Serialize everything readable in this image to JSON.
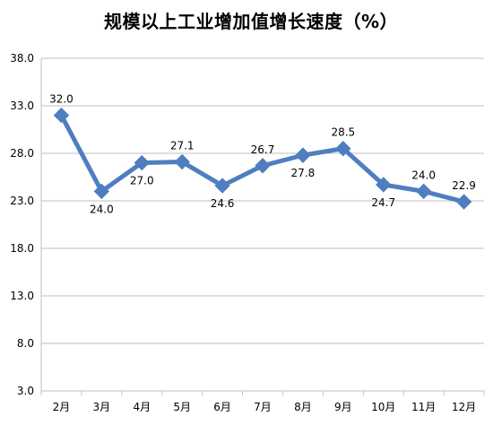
{
  "chart_data": {
    "type": "line",
    "title": "规模以上工业增加值增长速度（%）",
    "xlabel": "",
    "ylabel": "",
    "categories": [
      "2月",
      "3月",
      "4月",
      "5月",
      "6月",
      "7月",
      "8月",
      "9月",
      "10月",
      "11月",
      "12月"
    ],
    "series": [
      {
        "values": [
          32.0,
          24.0,
          27.0,
          27.1,
          24.6,
          26.7,
          27.8,
          28.5,
          24.7,
          24.0,
          22.9
        ],
        "labels": [
          "32.0",
          "24.0",
          "27.0",
          "27.1",
          "24.6",
          "26.7",
          "27.8",
          "28.5",
          "24.7",
          "24.0",
          "22.9"
        ],
        "label_side": [
          "above",
          "below",
          "below",
          "above",
          "below",
          "above",
          "below",
          "above",
          "below",
          "above",
          "above"
        ],
        "color": "#4F7EC0",
        "marker": "diamond"
      }
    ],
    "ylim": [
      3.0,
      38.0
    ],
    "yticks": [
      "38.0",
      "33.0",
      "28.0",
      "23.0",
      "18.0",
      "13.0",
      "8.0",
      "3.0"
    ],
    "ytick_values": [
      38.0,
      33.0,
      28.0,
      23.0,
      18.0,
      13.0,
      8.0,
      3.0
    ],
    "grid": true,
    "legend": "none",
    "colors": {
      "line": "#4F7EC0",
      "grid": "#BFBFBF",
      "axis": "#BFBFBF"
    }
  }
}
